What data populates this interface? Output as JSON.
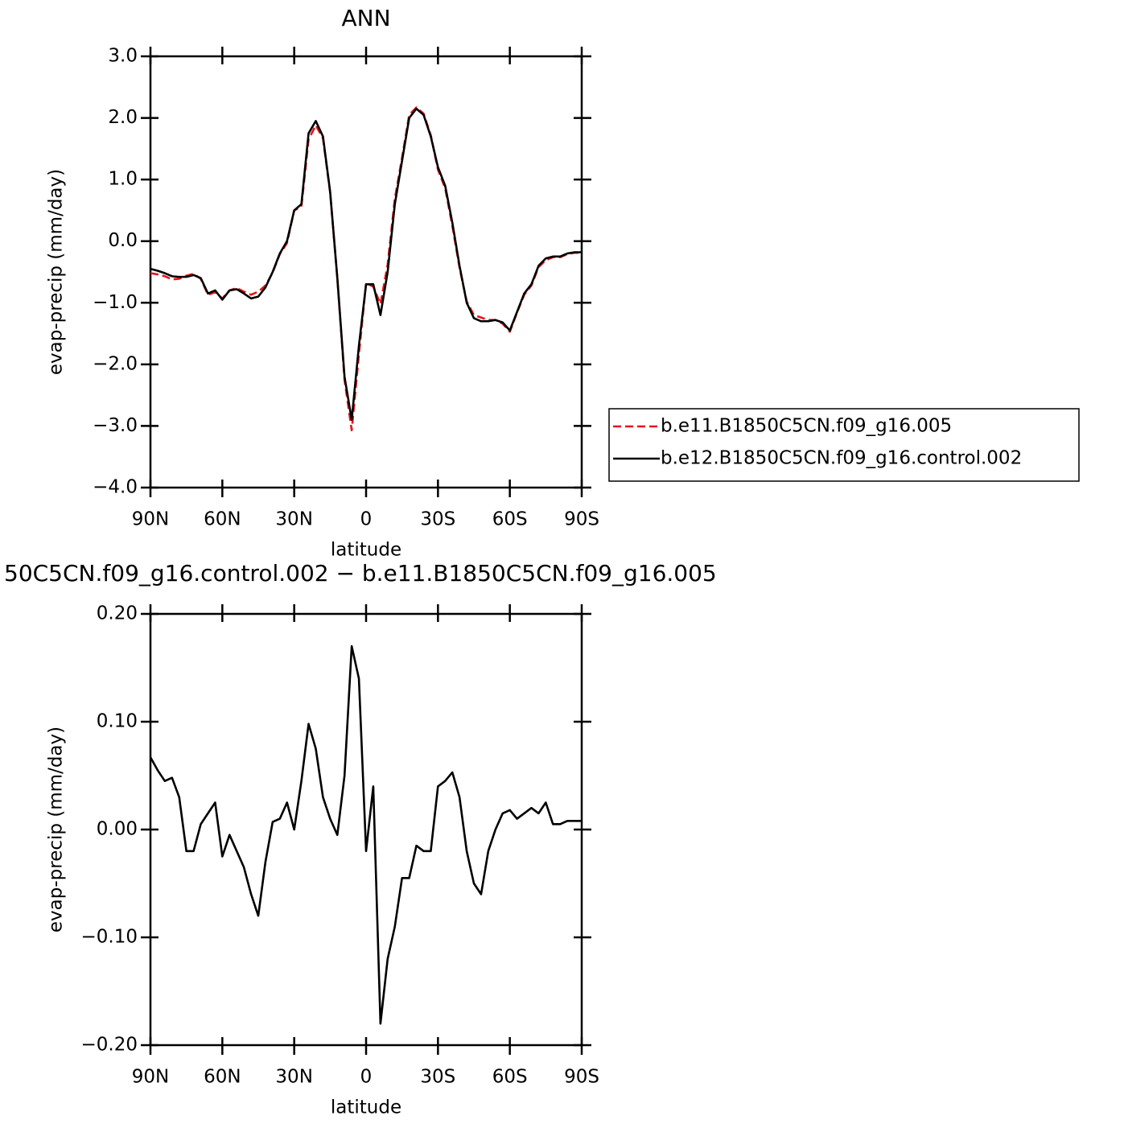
{
  "chart_data": [
    {
      "type": "line",
      "title": "ANN",
      "xlabel": "latitude",
      "ylabel": "evap-precip (mm/day)",
      "x": [
        90,
        87,
        84,
        81,
        78,
        75,
        72,
        69,
        66,
        63,
        60,
        57,
        54,
        51,
        48,
        45,
        42,
        39,
        36,
        33,
        30,
        27,
        24,
        21,
        18,
        15,
        12,
        9,
        6,
        3,
        0,
        -3,
        -6,
        -9,
        -12,
        -15,
        -18,
        -21,
        -24,
        -27,
        -30,
        -33,
        -36,
        -39,
        -42,
        -45,
        -48,
        -51,
        -54,
        -57,
        -60,
        -63,
        -66,
        -69,
        -72,
        -75,
        -78,
        -81,
        -84,
        -87,
        -90
      ],
      "xlim": [
        90,
        -90
      ],
      "xticks": [
        {
          "value": 90,
          "label": "90N"
        },
        {
          "value": 60,
          "label": "60N"
        },
        {
          "value": 30,
          "label": "30N"
        },
        0,
        {
          "value": -30,
          "label": "30S"
        },
        {
          "value": -60,
          "label": "60S"
        },
        {
          "value": -90,
          "label": "90S"
        }
      ],
      "ylim": [
        -4,
        3
      ],
      "yticks": [
        {
          "value": -4,
          "label": "−4.0"
        },
        {
          "value": -3,
          "label": "−3.0"
        },
        {
          "value": -2,
          "label": "−2.0"
        },
        {
          "value": -1,
          "label": "−1.0"
        },
        {
          "value": 0,
          "label": "0.0"
        },
        {
          "value": 1,
          "label": "1.0"
        },
        {
          "value": 2,
          "label": "2.0"
        },
        {
          "value": 3,
          "label": "3.0"
        }
      ],
      "legend": "outside-right",
      "series": [
        {
          "name": "b.e11.B1850C5CN.f09_g16.005",
          "color": "#e8141a",
          "dashed": true,
          "values": [
            -0.52,
            -0.54,
            -0.57,
            -0.62,
            -0.61,
            -0.56,
            -0.53,
            -0.61,
            -0.87,
            -0.83,
            -0.93,
            -0.8,
            -0.76,
            -0.82,
            -0.87,
            -0.82,
            -0.72,
            -0.51,
            -0.21,
            -0.03,
            0.5,
            0.56,
            1.65,
            1.88,
            1.67,
            0.79,
            -0.6,
            -2.25,
            -3.07,
            -1.84,
            -0.68,
            -0.74,
            -1.02,
            -0.38,
            0.69,
            1.35,
            2.05,
            2.17,
            2.07,
            1.72,
            1.16,
            0.86,
            0.25,
            -0.43,
            -0.98,
            -1.2,
            -1.24,
            -1.28,
            -1.28,
            -1.34,
            -1.47,
            -1.16,
            -0.87,
            -0.72,
            -0.42,
            -0.31,
            -0.26,
            -0.26,
            -0.21,
            -0.19,
            -0.19
          ]
        },
        {
          "name": "b.e12.B1850C5CN.f09_g16.control.002",
          "color": "#000000",
          "dashed": false,
          "values": [
            -0.45,
            -0.48,
            -0.52,
            -0.57,
            -0.58,
            -0.58,
            -0.55,
            -0.6,
            -0.85,
            -0.8,
            -0.95,
            -0.8,
            -0.78,
            -0.85,
            -0.93,
            -0.9,
            -0.75,
            -0.5,
            -0.2,
            0.0,
            0.5,
            0.6,
            1.75,
            1.95,
            1.7,
            0.8,
            -0.6,
            -2.2,
            -2.9,
            -1.7,
            -0.7,
            -0.7,
            -1.2,
            -0.5,
            0.6,
            1.3,
            2.0,
            2.15,
            2.05,
            1.7,
            1.2,
            0.9,
            0.3,
            -0.4,
            -1.0,
            -1.25,
            -1.3,
            -1.3,
            -1.28,
            -1.32,
            -1.45,
            -1.15,
            -0.85,
            -0.7,
            -0.4,
            -0.28,
            -0.25,
            -0.25,
            -0.2,
            -0.18,
            -0.18
          ]
        }
      ]
    },
    {
      "type": "line",
      "title": "50C5CN.f09_g16.control.002 − b.e11.B1850C5CN.f09_g16.005",
      "xlabel": "latitude",
      "ylabel": "evap-precip (mm/day)",
      "x": [
        90,
        87,
        84,
        81,
        78,
        75,
        72,
        69,
        66,
        63,
        60,
        57,
        54,
        51,
        48,
        45,
        42,
        39,
        36,
        33,
        30,
        27,
        24,
        21,
        18,
        15,
        12,
        9,
        6,
        3,
        0,
        -3,
        -6,
        -9,
        -12,
        -15,
        -18,
        -21,
        -24,
        -27,
        -30,
        -33,
        -36,
        -39,
        -42,
        -45,
        -48,
        -51,
        -54,
        -57,
        -60,
        -63,
        -66,
        -69,
        -72,
        -75,
        -78,
        -81,
        -84,
        -87,
        -90
      ],
      "xlim": [
        90,
        -90
      ],
      "xticks": [
        {
          "value": 90,
          "label": "90N"
        },
        {
          "value": 60,
          "label": "60N"
        },
        {
          "value": 30,
          "label": "30N"
        },
        0,
        {
          "value": -30,
          "label": "30S"
        },
        {
          "value": -60,
          "label": "60S"
        },
        {
          "value": -90,
          "label": "90S"
        }
      ],
      "ylim": [
        -0.2,
        0.2
      ],
      "yticks": [
        {
          "value": -0.2,
          "label": "−0.20"
        },
        {
          "value": -0.1,
          "label": "−0.10"
        },
        {
          "value": 0,
          "label": "0.00"
        },
        {
          "value": 0.1,
          "label": "0.10"
        },
        {
          "value": 0.2,
          "label": "0.20"
        }
      ],
      "series": [
        {
          "color": "#000000",
          "dashed": false,
          "values": [
            0.067,
            0.055,
            0.045,
            0.048,
            0.03,
            -0.02,
            -0.02,
            0.005,
            0.015,
            0.025,
            -0.025,
            -0.005,
            -0.02,
            -0.035,
            -0.06,
            -0.08,
            -0.03,
            0.007,
            0.01,
            0.025,
            0.0,
            0.045,
            0.098,
            0.075,
            0.03,
            0.01,
            -0.005,
            0.05,
            0.17,
            0.14,
            -0.02,
            0.04,
            -0.18,
            -0.12,
            -0.09,
            -0.045,
            -0.045,
            -0.015,
            -0.02,
            -0.02,
            0.04,
            0.045,
            0.053,
            0.03,
            -0.02,
            -0.05,
            -0.06,
            -0.02,
            0.0,
            0.015,
            0.018,
            0.01,
            0.015,
            0.02,
            0.015,
            0.025,
            0.005,
            0.005,
            0.008,
            0.008,
            0.008
          ]
        }
      ]
    }
  ]
}
